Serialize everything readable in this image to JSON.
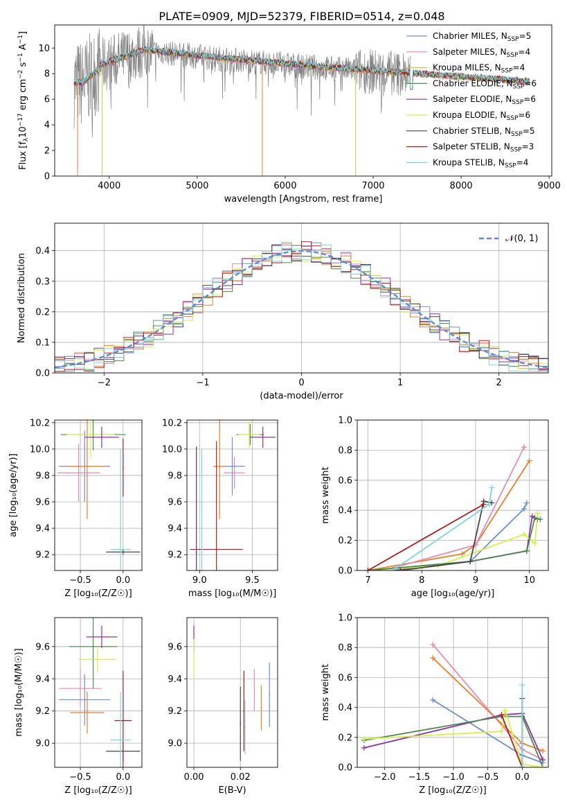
{
  "figure_title": "PLATE=0909, MJD=52379, FIBERID=0514, z=0.048",
  "legend_items": [
    {
      "name": "Chabrier MILES",
      "nssp": "5",
      "color": "#6b8fd6"
    },
    {
      "name": "Salpeter MILES",
      "nssp": "4",
      "color": "#e58ab5"
    },
    {
      "name": "Kroupa MILES",
      "nssp": "4",
      "color": "#d8c33f"
    },
    {
      "name": "Chabrier ELODIE",
      "nssp": "6",
      "color": "#4a8a4a"
    },
    {
      "name": "Salpeter ELODIE",
      "nssp": "6",
      "color": "#8e2fa8"
    },
    {
      "name": "Kroupa ELODIE",
      "nssp": "6",
      "color": "#d6ef4a"
    },
    {
      "name": "Chabrier STELIB",
      "nssp": "5",
      "color": "#444444"
    },
    {
      "name": "Salpeter STELIB",
      "nssp": "3",
      "color": "#b01c1c"
    },
    {
      "name": "Kroupa STELIB",
      "nssp": "4",
      "color": "#7dd3dd"
    }
  ],
  "series_colors": [
    "#6b8fd6",
    "#e87f2a",
    "#e58ab5",
    "#4a8a4a",
    "#8e2fa8",
    "#d6ef4a",
    "#444444",
    "#b01c1c",
    "#7dd3dd"
  ],
  "chart_data": [
    {
      "id": "spectrum",
      "type": "line",
      "xlabel": "wavelength [Angstrom, rest frame]",
      "xlim": [
        3380,
        9030
      ],
      "ylim": [
        0,
        11.8
      ],
      "xticks": [
        4000,
        5000,
        6000,
        7000,
        8000,
        9000
      ],
      "yticks": [
        0,
        2,
        4,
        6,
        8,
        10
      ],
      "grid": false,
      "legend_position": "right"
    },
    {
      "id": "residuals",
      "type": "line",
      "xlabel": "(data-model)/error",
      "ylabel": "Normed distribution",
      "xlim": [
        -2.5,
        2.5
      ],
      "ylim": [
        0,
        0.49
      ],
      "xticks": [
        -2,
        -1,
        0,
        1,
        2
      ],
      "yticks": [
        0.0,
        0.1,
        0.2,
        0.3,
        0.4
      ],
      "grid": true,
      "legend_position": "top-right",
      "legend_label": "𝒩(0, 1)"
    },
    {
      "id": "age_vs_Z",
      "type": "scatter",
      "xlabel": "Z [log₁₀(Z/Z☉)]",
      "ylabel": "age  [log₁₀(age/yr)]",
      "xlim": [
        -0.8,
        0.22
      ],
      "ylim": [
        9.08,
        10.22
      ],
      "xticks": [
        -0.5,
        0.0
      ],
      "yticks": [
        9.2,
        9.4,
        9.6,
        9.8,
        10.0,
        10.2
      ],
      "grid": true,
      "points": [
        {
          "x": -0.45,
          "y": 9.87,
          "xerr": 0.3,
          "yerr": 0.27,
          "color": "#6b8fd6"
        },
        {
          "x": -0.52,
          "y": 9.82,
          "xerr": 0.25,
          "yerr": 0.22,
          "color": "#e58ab5"
        },
        {
          "x": -0.42,
          "y": 9.87,
          "xerr": 0.22,
          "yerr": 0.4,
          "color": "#e87f2a"
        },
        {
          "x": -0.35,
          "y": 10.11,
          "xerr": 0.38,
          "yerr": 0.12,
          "color": "#4a8a4a"
        },
        {
          "x": -0.38,
          "y": 10.11,
          "xerr": 0.28,
          "yerr": 0.18,
          "color": "#d6ef4a"
        },
        {
          "x": -0.25,
          "y": 10.09,
          "xerr": 0.2,
          "yerr": 0.08,
          "color": "#8e2fa8"
        },
        {
          "x": 0.0,
          "y": 9.22,
          "xerr": 0.2,
          "yerr": 0.02,
          "color": "#444444"
        },
        {
          "x": 0.0,
          "y": 9.86,
          "xerr": 0.0,
          "yerr": 0.22,
          "color": "#b01c1c"
        },
        {
          "x": -0.03,
          "y": 9.24,
          "xerr": 0.12,
          "yerr": 0.76,
          "color": "#7dd3dd"
        }
      ]
    },
    {
      "id": "age_vs_mass",
      "type": "scatter",
      "xlabel": "mass [log₁₀(M/M☉)]",
      "ylabel": "",
      "xlim": [
        8.88,
        9.74
      ],
      "ylim": [
        9.08,
        10.22
      ],
      "xticks": [
        9.0,
        9.5
      ],
      "yticks": [
        9.2,
        9.4,
        9.6,
        9.8,
        10.0,
        10.2
      ],
      "grid": true,
      "points": [
        {
          "x": 9.31,
          "y": 9.87,
          "xerr": 0.12,
          "yerr": 0.22,
          "color": "#6b8fd6"
        },
        {
          "x": 9.33,
          "y": 9.82,
          "xerr": 0.1,
          "yerr": 0.12,
          "color": "#e58ab5"
        },
        {
          "x": 9.19,
          "y": 9.87,
          "xerr": 0.06,
          "yerr": 0.4,
          "color": "#e87f2a"
        },
        {
          "x": 9.48,
          "y": 10.11,
          "xerr": 0.13,
          "yerr": 0.08,
          "color": "#4a8a4a"
        },
        {
          "x": 9.47,
          "y": 10.11,
          "xerr": 0.1,
          "yerr": 0.1,
          "color": "#d6ef4a"
        },
        {
          "x": 9.6,
          "y": 10.09,
          "xerr": 0.12,
          "yerr": 0.08,
          "color": "#8e2fa8"
        },
        {
          "x": 8.97,
          "y": 9.22,
          "xerr": 0.0,
          "yerr": 0.8,
          "color": "#444444"
        },
        {
          "x": 9.16,
          "y": 9.24,
          "xerr": 0.25,
          "yerr": 0.82,
          "color": "#b01c1c"
        },
        {
          "x": 9.02,
          "y": 9.24,
          "xerr": 0.0,
          "yerr": 0.76,
          "color": "#7dd3dd"
        }
      ]
    },
    {
      "id": "mw_vs_age",
      "type": "line",
      "xlabel": "age  [log₁₀(age/yr)]",
      "ylabel": "mass weight",
      "xlim": [
        6.8,
        10.35
      ],
      "ylim": [
        0,
        1.0
      ],
      "xticks": [
        7,
        8,
        9,
        10
      ],
      "yticks": [
        0.0,
        0.2,
        0.4,
        0.6,
        0.8,
        1.0
      ],
      "grid": true,
      "series": [
        {
          "color": "#e87f2a",
          "x": [
            7.0,
            8.75,
            9.0,
            10.0
          ],
          "y": [
            0.0,
            0.11,
            0.17,
            0.73
          ]
        },
        {
          "color": "#e58ab5",
          "x": [
            7.5,
            9.0,
            9.9
          ],
          "y": [
            0.02,
            0.17,
            0.82
          ]
        },
        {
          "color": "#6b8fd6",
          "x": [
            7.5,
            8.9,
            9.9,
            9.95
          ],
          "y": [
            0.01,
            0.06,
            0.41,
            0.45
          ]
        },
        {
          "color": "#8e2fa8",
          "x": [
            7.5,
            8.9,
            9.95,
            10.05,
            10.15
          ],
          "y": [
            0.0,
            0.06,
            0.13,
            0.36,
            0.34
          ]
        },
        {
          "color": "#d6ef4a",
          "x": [
            7.0,
            8.3,
            9.9,
            10.1,
            10.15
          ],
          "y": [
            0.0,
            0.03,
            0.24,
            0.18,
            0.38
          ]
        },
        {
          "color": "#4a8a4a",
          "x": [
            7.0,
            8.9,
            9.95,
            10.1,
            10.2
          ],
          "y": [
            0.0,
            0.06,
            0.13,
            0.35,
            0.34
          ]
        },
        {
          "color": "#444444",
          "x": [
            7.6,
            8.9,
            9.15,
            9.3
          ],
          "y": [
            0.0,
            0.06,
            0.46,
            0.45
          ]
        },
        {
          "color": "#b01c1c",
          "x": [
            7.0,
            9.15
          ],
          "y": [
            0.0,
            0.44
          ]
        },
        {
          "color": "#7dd3dd",
          "x": [
            7.5,
            9.25,
            9.3
          ],
          "y": [
            0.01,
            0.44,
            0.55
          ]
        }
      ]
    },
    {
      "id": "mass_vs_Z",
      "type": "scatter",
      "xlabel": "Z [log₁₀(Z/Z☉)]",
      "ylabel": "mass [log₁₀(M/M☉)]",
      "xlim": [
        -0.8,
        0.22
      ],
      "ylim": [
        8.85,
        9.78
      ],
      "xticks": [
        -0.5,
        0.0
      ],
      "yticks": [
        9.0,
        9.2,
        9.4,
        9.6
      ],
      "grid": true,
      "points": [
        {
          "x": -0.45,
          "y": 9.27,
          "xerr": 0.3,
          "yerr": 0.16,
          "color": "#6b8fd6"
        },
        {
          "x": -0.5,
          "y": 9.34,
          "xerr": 0.25,
          "yerr": 0.12,
          "color": "#e58ab5"
        },
        {
          "x": -0.42,
          "y": 9.19,
          "xerr": 0.2,
          "yerr": 0.13,
          "color": "#e87f2a"
        },
        {
          "x": -0.35,
          "y": 9.6,
          "xerr": 0.28,
          "yerr": 0.26,
          "color": "#4a8a4a"
        },
        {
          "x": -0.3,
          "y": 9.52,
          "xerr": 0.22,
          "yerr": 0.08,
          "color": "#d6ef4a"
        },
        {
          "x": -0.25,
          "y": 9.66,
          "xerr": 0.18,
          "yerr": 0.07,
          "color": "#8e2fa8"
        },
        {
          "x": 0.0,
          "y": 8.95,
          "xerr": 0.2,
          "yerr": 0.06,
          "color": "#444444"
        },
        {
          "x": 0.0,
          "y": 9.14,
          "xerr": 0.1,
          "yerr": 0.31,
          "color": "#b01c1c"
        },
        {
          "x": -0.03,
          "y": 9.02,
          "xerr": 0.12,
          "yerr": 0.3,
          "color": "#7dd3dd"
        }
      ]
    },
    {
      "id": "mass_vs_ebv",
      "type": "scatter",
      "xlabel": "E(B-V)",
      "ylabel": "",
      "xlim": [
        -0.003,
        0.036
      ],
      "ylim": [
        8.85,
        9.78
      ],
      "xticks": [
        0.0,
        0.02
      ],
      "yticks": [
        9.0,
        9.2,
        9.4,
        9.6
      ],
      "grid": true,
      "points": [
        {
          "x": 0.0,
          "y": 9.65,
          "xerr": 0.0,
          "yerr": 0.08,
          "color": "#8e2fa8"
        },
        {
          "x": 0.0,
          "y": 9.52,
          "xerr": 0.0,
          "yerr": 0.13,
          "color": "#d6ef4a"
        },
        {
          "x": 0.02,
          "y": 9.12,
          "xerr": 0.0,
          "yerr": 0.23,
          "color": "#444444"
        },
        {
          "x": 0.0215,
          "y": 9.2,
          "xerr": 0.0,
          "yerr": 0.25,
          "color": "#b01c1c"
        },
        {
          "x": 0.022,
          "y": 9.1,
          "xerr": 0.0,
          "yerr": 0.17,
          "color": "#7dd3dd"
        },
        {
          "x": 0.026,
          "y": 9.33,
          "xerr": 0.0,
          "yerr": 0.13,
          "color": "#e58ab5"
        },
        {
          "x": 0.029,
          "y": 9.22,
          "xerr": 0.0,
          "yerr": 0.14,
          "color": "#e87f2a"
        },
        {
          "x": 0.0325,
          "y": 9.3,
          "xerr": 0.0,
          "yerr": 0.2,
          "color": "#6b8fd6"
        }
      ]
    },
    {
      "id": "mw_vs_Z",
      "type": "line",
      "xlabel": "Z [log₁₀(Z/Z☉)]",
      "ylabel": "mass weight",
      "xlim": [
        -2.4,
        0.38
      ],
      "ylim": [
        0,
        1.0
      ],
      "xticks": [
        -2.0,
        -1.5,
        -1.0,
        -0.5,
        0.0
      ],
      "yticks": [
        0.0,
        0.2,
        0.4,
        0.6,
        0.8,
        1.0
      ],
      "grid": true,
      "series": [
        {
          "color": "#e58ab5",
          "x": [
            -1.3,
            0.0,
            0.3
          ],
          "y": [
            0.82,
            0.12,
            0.05
          ]
        },
        {
          "color": "#e87f2a",
          "x": [
            -1.3,
            0.0,
            0.3
          ],
          "y": [
            0.73,
            0.16,
            0.11
          ]
        },
        {
          "color": "#6b8fd6",
          "x": [
            -1.3,
            0.0,
            0.3
          ],
          "y": [
            0.45,
            0.08,
            0.03
          ]
        },
        {
          "color": "#8e2fa8",
          "x": [
            -2.3,
            -0.3,
            0.0,
            0.3
          ],
          "y": [
            0.13,
            0.35,
            0.36,
            0.05
          ]
        },
        {
          "color": "#4a8a4a",
          "x": [
            -2.3,
            -0.3,
            0.0,
            0.3
          ],
          "y": [
            0.18,
            0.34,
            0.34,
            0.0
          ]
        },
        {
          "color": "#d6ef4a",
          "x": [
            -2.3,
            -0.3,
            -0.25,
            0.0,
            0.3
          ],
          "y": [
            0.19,
            0.24,
            0.38,
            0.02,
            0.0
          ]
        },
        {
          "color": "#444444",
          "x": [
            0.0,
            0.0
          ],
          "y": [
            0.0,
            0.46
          ]
        },
        {
          "color": "#b01c1c",
          "x": [
            -0.3,
            0.0
          ],
          "y": [
            0.35,
            0.0
          ]
        },
        {
          "color": "#7dd3dd",
          "x": [
            0.0,
            0.0
          ],
          "y": [
            0.0,
            0.55
          ]
        }
      ]
    }
  ]
}
